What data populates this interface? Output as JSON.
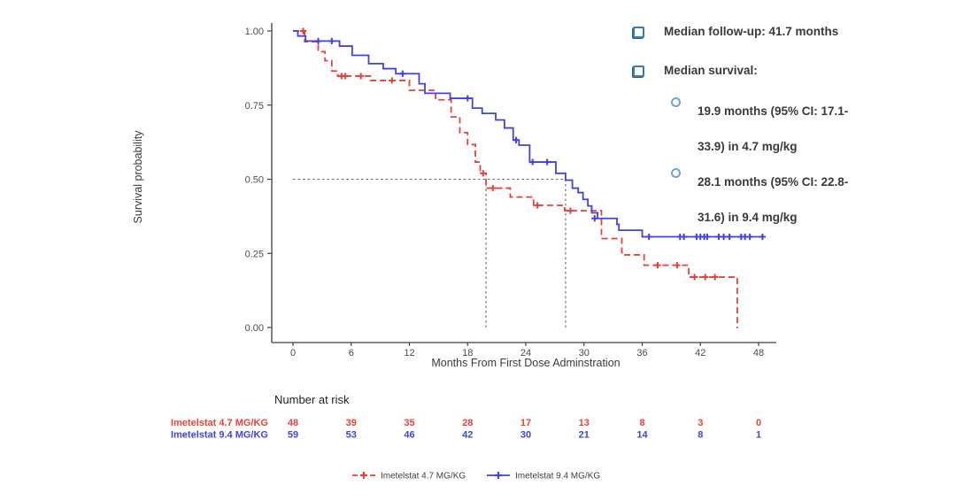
{
  "chart_data": {
    "type": "line",
    "subtype": "kaplan-meier-survival",
    "xlabel": "Months From First Dose Adminstration",
    "ylabel": "Survival probability",
    "xlim": [
      0,
      48
    ],
    "ylim": [
      0,
      1
    ],
    "xticks": [
      0,
      6,
      12,
      18,
      24,
      30,
      36,
      42,
      48
    ],
    "ytick_labels": [
      "0.00",
      "0.25",
      "0.50",
      "0.75",
      "1.00"
    ],
    "ytick_values": [
      0,
      0.25,
      0.5,
      0.75,
      1.0
    ],
    "grid": false,
    "median_reference": {
      "y": 0.5,
      "x_medians": [
        19.9,
        28.1
      ]
    },
    "series": [
      {
        "name": "Imetelstat 4.7 MG/KG",
        "color": "#e8413c",
        "dashed": true,
        "end_time": 45.9,
        "steps": [
          [
            0,
            1.0
          ],
          [
            1.2,
            0.964
          ],
          [
            2.6,
            0.93
          ],
          [
            3.3,
            0.9
          ],
          [
            4.0,
            0.865
          ],
          [
            4.6,
            0.848
          ],
          [
            8.0,
            0.833
          ],
          [
            12.0,
            0.8
          ],
          [
            14.7,
            0.768
          ],
          [
            16.3,
            0.71
          ],
          [
            17.2,
            0.657
          ],
          [
            18.0,
            0.617
          ],
          [
            18.8,
            0.558
          ],
          [
            19.3,
            0.52
          ],
          [
            19.9,
            0.47
          ],
          [
            22.4,
            0.44
          ],
          [
            24.8,
            0.412
          ],
          [
            28.0,
            0.394
          ],
          [
            31.8,
            0.3
          ],
          [
            33.9,
            0.245
          ],
          [
            36.2,
            0.21
          ],
          [
            40.8,
            0.17
          ],
          [
            45.8,
            0.0
          ]
        ],
        "censors": [
          [
            1.05,
            1.0
          ],
          [
            5.0,
            0.848
          ],
          [
            5.4,
            0.848
          ],
          [
            7.0,
            0.848
          ],
          [
            10.2,
            0.833
          ],
          [
            19.6,
            0.52
          ],
          [
            20.6,
            0.47
          ],
          [
            25.2,
            0.412
          ],
          [
            28.6,
            0.394
          ],
          [
            37.6,
            0.21
          ],
          [
            39.6,
            0.21
          ],
          [
            41.4,
            0.17
          ],
          [
            42.5,
            0.17
          ],
          [
            43.5,
            0.17
          ]
        ]
      },
      {
        "name": "Imetelstat 9.4 MG/KG",
        "color": "#4242e3",
        "dashed": false,
        "end_time": 48.5,
        "steps": [
          [
            0,
            1.0
          ],
          [
            0.5,
            0.983
          ],
          [
            1.3,
            0.966
          ],
          [
            4.8,
            0.949
          ],
          [
            6.1,
            0.918
          ],
          [
            7.8,
            0.89
          ],
          [
            9.3,
            0.873
          ],
          [
            10.6,
            0.856
          ],
          [
            13.0,
            0.822
          ],
          [
            13.6,
            0.79
          ],
          [
            16.2,
            0.773
          ],
          [
            18.5,
            0.74
          ],
          [
            19.5,
            0.722
          ],
          [
            20.9,
            0.7
          ],
          [
            21.8,
            0.673
          ],
          [
            22.7,
            0.632
          ],
          [
            23.3,
            0.615
          ],
          [
            24.4,
            0.558
          ],
          [
            27.1,
            0.52
          ],
          [
            28.1,
            0.497
          ],
          [
            28.8,
            0.47
          ],
          [
            29.4,
            0.455
          ],
          [
            29.9,
            0.432
          ],
          [
            30.4,
            0.41
          ],
          [
            30.8,
            0.387
          ],
          [
            31.4,
            0.368
          ],
          [
            33.4,
            0.348
          ],
          [
            33.6,
            0.328
          ],
          [
            36.0,
            0.306
          ]
        ],
        "censors": [
          [
            2.6,
            0.966
          ],
          [
            4.0,
            0.966
          ],
          [
            11.3,
            0.856
          ],
          [
            18.0,
            0.773
          ],
          [
            23.0,
            0.632
          ],
          [
            24.7,
            0.558
          ],
          [
            26.2,
            0.558
          ],
          [
            31.1,
            0.368
          ],
          [
            36.7,
            0.306
          ],
          [
            39.9,
            0.306
          ],
          [
            40.3,
            0.306
          ],
          [
            41.6,
            0.306
          ],
          [
            42.0,
            0.306
          ],
          [
            42.4,
            0.306
          ],
          [
            42.7,
            0.306
          ],
          [
            43.9,
            0.306
          ],
          [
            44.4,
            0.306
          ],
          [
            45.0,
            0.306
          ],
          [
            46.2,
            0.306
          ],
          [
            46.6,
            0.306
          ],
          [
            47.1,
            0.306
          ],
          [
            48.4,
            0.306
          ]
        ]
      }
    ],
    "risk_table": {
      "title": "Number at risk",
      "times": [
        0,
        6,
        12,
        18,
        24,
        30,
        36,
        42,
        48
      ],
      "rows": [
        {
          "label": "Imetelstat 4.7 MG/KG",
          "color": "#e8413c",
          "counts": [
            48,
            39,
            35,
            28,
            17,
            13,
            8,
            3,
            0
          ]
        },
        {
          "label": "Imetelstat 9.4 MG/KG",
          "color": "#4242e3",
          "counts": [
            59,
            53,
            46,
            42,
            30,
            21,
            14,
            8,
            1
          ]
        }
      ]
    },
    "legend": {
      "position": "bottom-center",
      "items": [
        {
          "label": "Imetelstat 4.7 MG/KG",
          "color": "#e8413c",
          "dashed": true
        },
        {
          "label": "Imetelstat 9.4 MG/KG",
          "color": "#4242e3",
          "dashed": false
        }
      ]
    }
  },
  "annotations": {
    "bullet_color": "#3879b6",
    "items": [
      {
        "text": "Median follow-up: 41.7 months"
      },
      {
        "text": "Median survival:"
      }
    ],
    "sub_items": [
      {
        "lines": [
          "19.9 months (95% CI: 17.1-",
          "33.9) in 4.7 mg/kg"
        ]
      },
      {
        "lines": [
          "28.1 months (95% CI: 22.8-",
          "31.6) in 9.4 mg/kg"
        ]
      }
    ]
  },
  "colors": {
    "axis": "#3f3f3f",
    "reference_line": "#666666",
    "text": "#3a3a3a"
  }
}
